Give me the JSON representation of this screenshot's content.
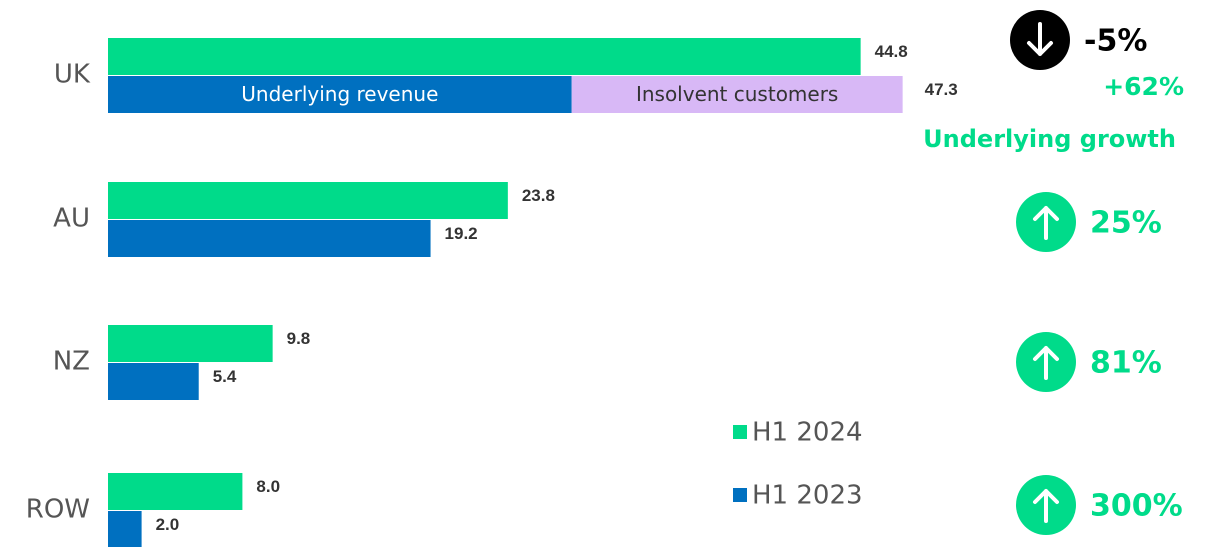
{
  "chart_data": {
    "type": "bar",
    "orientation": "horizontal",
    "categories": [
      "UK",
      "AU",
      "NZ",
      "ROW"
    ],
    "xlim": [
      0,
      50
    ],
    "series": [
      {
        "name": "H1 2024",
        "color": "#00db8a",
        "values": [
          44.8,
          23.8,
          9.8,
          8.0
        ],
        "value_labels": [
          "44.8",
          "23.8",
          "9.8",
          "8.0"
        ]
      },
      {
        "name": "H1 2023",
        "color": "#0070c0",
        "values": [
          47.3,
          19.2,
          5.4,
          2.0
        ],
        "value_labels": [
          "47.3",
          "19.2",
          "5.4",
          "2.0"
        ],
        "breakdown": [
          [
            {
              "name": "Underlying revenue",
              "value": 27.6,
              "color": "#0070c0"
            },
            {
              "name": "Insolvent customers",
              "value": 19.7,
              "color": "#d8b8f6"
            }
          ],
          null,
          null,
          null
        ]
      }
    ],
    "growth": [
      {
        "label": "-5%",
        "direction": "down",
        "color": "#000000",
        "note": "+62%",
        "note_caption": "Underlying growth"
      },
      {
        "label": "25%",
        "direction": "up",
        "color": "#00db8a"
      },
      {
        "label": "81%",
        "direction": "up",
        "color": "#00db8a"
      },
      {
        "label": "300%",
        "direction": "up",
        "color": "#00db8a"
      }
    ],
    "note_color": "#00db8a"
  }
}
